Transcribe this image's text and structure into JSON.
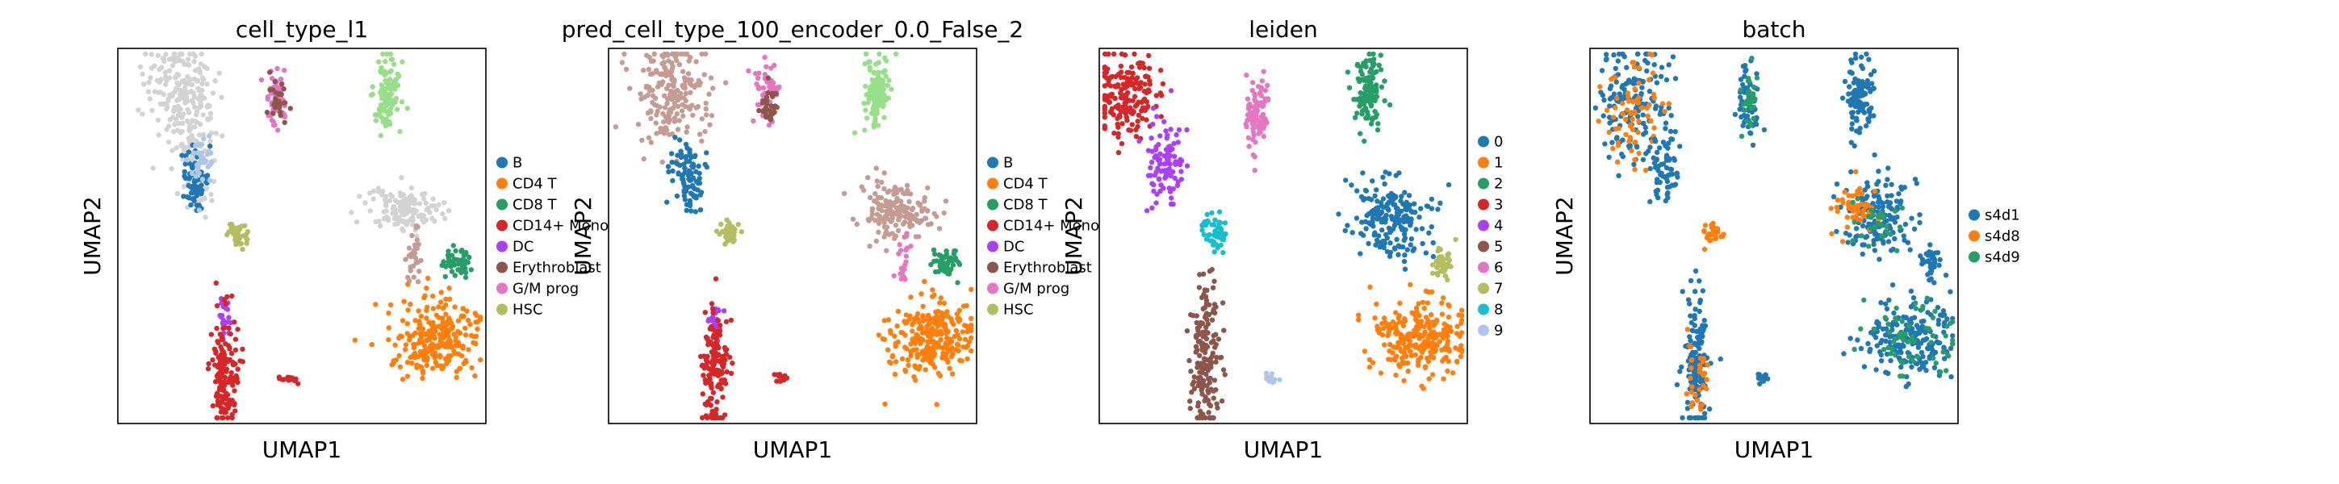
{
  "chart_data": [
    {
      "type": "scatter",
      "title": "cell_type_l1",
      "xlabel": "UMAP1",
      "ylabel": "UMAP2",
      "grid": false,
      "legend_position": "right",
      "legend": [
        {
          "label": "B",
          "color": "#1f77b4"
        },
        {
          "label": "CD4 T",
          "color": "#ff7f0e"
        },
        {
          "label": "CD8 T",
          "color": "#279e68"
        },
        {
          "label": "CD14+ Mono",
          "color": "#d62728"
        },
        {
          "label": "DC",
          "color": "#aa40fc"
        },
        {
          "label": "Erythroblast",
          "color": "#8c564b"
        },
        {
          "label": "G/M prog",
          "color": "#e377c2"
        },
        {
          "label": "HSC",
          "color": "#b5bd61"
        }
      ],
      "clusters": [
        {
          "category": "unlabeled",
          "color": "#d3d3d3",
          "cx": 0.17,
          "cy": 0.1,
          "sx": 0.05,
          "sy": 0.06,
          "n": 160
        },
        {
          "category": "unlabeled",
          "color": "#d3d3d3",
          "cx": 0.2,
          "cy": 0.25,
          "sx": 0.03,
          "sy": 0.06,
          "n": 80
        },
        {
          "category": "unlabeled",
          "color": "#d3d3d3",
          "cx": 0.22,
          "cy": 0.38,
          "sx": 0.02,
          "sy": 0.03,
          "n": 30
        },
        {
          "category": "B",
          "color": "#1f77b4",
          "cx": 0.21,
          "cy": 0.35,
          "sx": 0.018,
          "sy": 0.035,
          "n": 70
        },
        {
          "category": "B",
          "color": "#aec7e8",
          "cx": 0.23,
          "cy": 0.3,
          "sx": 0.02,
          "sy": 0.04,
          "n": 40
        },
        {
          "category": "G/M prog",
          "color": "#e377c2",
          "cx": 0.43,
          "cy": 0.12,
          "sx": 0.015,
          "sy": 0.04,
          "n": 60
        },
        {
          "category": "Erythroblast",
          "color": "#8c564b",
          "cx": 0.44,
          "cy": 0.14,
          "sx": 0.012,
          "sy": 0.03,
          "n": 30
        },
        {
          "category": "HSC",
          "color": "#b5bd61",
          "cx": 0.33,
          "cy": 0.5,
          "sx": 0.015,
          "sy": 0.015,
          "n": 40
        },
        {
          "category": "CD8 T",
          "color": "#98df8a",
          "cx": 0.73,
          "cy": 0.12,
          "sx": 0.018,
          "sy": 0.05,
          "n": 110
        },
        {
          "category": "unlabeled",
          "color": "#d3d3d3",
          "cx": 0.78,
          "cy": 0.43,
          "sx": 0.05,
          "sy": 0.03,
          "n": 140
        },
        {
          "category": "Erythroblast",
          "color": "#c49c94",
          "cx": 0.8,
          "cy": 0.55,
          "sx": 0.01,
          "sy": 0.04,
          "n": 30
        },
        {
          "category": "CD8 T",
          "color": "#279e68",
          "cx": 0.92,
          "cy": 0.57,
          "sx": 0.018,
          "sy": 0.02,
          "n": 50
        },
        {
          "category": "CD4 T",
          "color": "#ff7f0e",
          "cx": 0.87,
          "cy": 0.77,
          "sx": 0.06,
          "sy": 0.05,
          "n": 260
        },
        {
          "category": "DC",
          "color": "#aa40fc",
          "cx": 0.29,
          "cy": 0.72,
          "sx": 0.01,
          "sy": 0.025,
          "n": 25
        },
        {
          "category": "CD14+ Mono",
          "color": "#d62728",
          "cx": 0.29,
          "cy": 0.86,
          "sx": 0.018,
          "sy": 0.08,
          "n": 150
        },
        {
          "category": "CD14+ Mono",
          "color": "#d62728",
          "cx": 0.47,
          "cy": 0.88,
          "sx": 0.012,
          "sy": 0.006,
          "n": 15
        }
      ]
    },
    {
      "type": "scatter",
      "title": "pred_cell_type_100_encoder_0.0_False_2",
      "xlabel": "UMAP1",
      "ylabel": "UMAP2",
      "grid": false,
      "legend_position": "right",
      "legend": [
        {
          "label": "B",
          "color": "#1f77b4"
        },
        {
          "label": "CD4 T",
          "color": "#ff7f0e"
        },
        {
          "label": "CD8 T",
          "color": "#279e68"
        },
        {
          "label": "CD14+ Mono",
          "color": "#d62728"
        },
        {
          "label": "DC",
          "color": "#aa40fc"
        },
        {
          "label": "Erythroblast",
          "color": "#8c564b"
        },
        {
          "label": "G/M prog",
          "color": "#e377c2"
        },
        {
          "label": "HSC",
          "color": "#b5bd61"
        }
      ],
      "clusters": [
        {
          "category": "Erythroblast",
          "color": "#c49c94",
          "cx": 0.17,
          "cy": 0.12,
          "sx": 0.05,
          "sy": 0.07,
          "n": 200
        },
        {
          "category": "B",
          "color": "#1f77b4",
          "cx": 0.21,
          "cy": 0.33,
          "sx": 0.02,
          "sy": 0.05,
          "n": 90
        },
        {
          "category": "HSC",
          "color": "#b5bd61",
          "cx": 0.33,
          "cy": 0.49,
          "sx": 0.015,
          "sy": 0.015,
          "n": 40
        },
        {
          "category": "G/M prog",
          "color": "#e377c2",
          "cx": 0.43,
          "cy": 0.12,
          "sx": 0.015,
          "sy": 0.04,
          "n": 60
        },
        {
          "category": "Erythroblast",
          "color": "#8c564b",
          "cx": 0.44,
          "cy": 0.15,
          "sx": 0.012,
          "sy": 0.03,
          "n": 30
        },
        {
          "category": "CD8 T",
          "color": "#98df8a",
          "cx": 0.73,
          "cy": 0.12,
          "sx": 0.018,
          "sy": 0.05,
          "n": 110
        },
        {
          "category": "Erythroblast",
          "color": "#c49c94",
          "cx": 0.78,
          "cy": 0.44,
          "sx": 0.05,
          "sy": 0.04,
          "n": 160
        },
        {
          "category": "G/M prog",
          "color": "#e377c2",
          "cx": 0.8,
          "cy": 0.56,
          "sx": 0.01,
          "sy": 0.03,
          "n": 20
        },
        {
          "category": "CD8 T",
          "color": "#279e68",
          "cx": 0.92,
          "cy": 0.57,
          "sx": 0.018,
          "sy": 0.02,
          "n": 50
        },
        {
          "category": "CD4 T",
          "color": "#ff7f0e",
          "cx": 0.87,
          "cy": 0.77,
          "sx": 0.06,
          "sy": 0.05,
          "n": 260
        },
        {
          "category": "DC",
          "color": "#aa40fc",
          "cx": 0.29,
          "cy": 0.72,
          "sx": 0.01,
          "sy": 0.025,
          "n": 25
        },
        {
          "category": "CD14+ Mono",
          "color": "#d62728",
          "cx": 0.29,
          "cy": 0.86,
          "sx": 0.018,
          "sy": 0.08,
          "n": 150
        },
        {
          "category": "CD14+ Mono",
          "color": "#d62728",
          "cx": 0.47,
          "cy": 0.88,
          "sx": 0.012,
          "sy": 0.006,
          "n": 15
        }
      ]
    },
    {
      "type": "scatter",
      "title": "leiden",
      "xlabel": "UMAP1",
      "ylabel": "UMAP2",
      "grid": false,
      "legend_position": "right",
      "legend": [
        {
          "label": "0",
          "color": "#1f77b4"
        },
        {
          "label": "1",
          "color": "#ff7f0e"
        },
        {
          "label": "2",
          "color": "#279e68"
        },
        {
          "label": "3",
          "color": "#d62728"
        },
        {
          "label": "4",
          "color": "#aa40fc"
        },
        {
          "label": "5",
          "color": "#8c564b"
        },
        {
          "label": "6",
          "color": "#e377c2"
        },
        {
          "label": "7",
          "color": "#b5bd61"
        },
        {
          "label": "8",
          "color": "#17becf"
        },
        {
          "label": "9",
          "color": "#aec7e8"
        }
      ],
      "clusters": [
        {
          "category": "3",
          "color": "#d62728",
          "cx": 0.07,
          "cy": 0.13,
          "sx": 0.04,
          "sy": 0.06,
          "n": 180
        },
        {
          "category": "4",
          "color": "#aa40fc",
          "cx": 0.18,
          "cy": 0.3,
          "sx": 0.025,
          "sy": 0.06,
          "n": 100
        },
        {
          "category": "8",
          "color": "#17becf",
          "cx": 0.32,
          "cy": 0.49,
          "sx": 0.02,
          "sy": 0.02,
          "n": 50
        },
        {
          "category": "6",
          "color": "#e377c2",
          "cx": 0.43,
          "cy": 0.16,
          "sx": 0.018,
          "sy": 0.05,
          "n": 90
        },
        {
          "category": "2",
          "color": "#279e68",
          "cx": 0.73,
          "cy": 0.12,
          "sx": 0.02,
          "sy": 0.05,
          "n": 110
        },
        {
          "category": "0",
          "color": "#1f77b4",
          "cx": 0.79,
          "cy": 0.45,
          "sx": 0.05,
          "sy": 0.05,
          "n": 200
        },
        {
          "category": "7",
          "color": "#b5bd61",
          "cx": 0.93,
          "cy": 0.57,
          "sx": 0.015,
          "sy": 0.02,
          "n": 45
        },
        {
          "category": "1",
          "color": "#ff7f0e",
          "cx": 0.87,
          "cy": 0.77,
          "sx": 0.06,
          "sy": 0.05,
          "n": 260
        },
        {
          "category": "5",
          "color": "#8c564b",
          "cx": 0.29,
          "cy": 0.82,
          "sx": 0.02,
          "sy": 0.1,
          "n": 170
        },
        {
          "category": "9",
          "color": "#aec7e8",
          "cx": 0.47,
          "cy": 0.88,
          "sx": 0.012,
          "sy": 0.006,
          "n": 15
        }
      ]
    },
    {
      "type": "scatter",
      "title": "batch",
      "xlabel": "UMAP1",
      "ylabel": "UMAP2",
      "grid": false,
      "legend_position": "right",
      "legend": [
        {
          "label": "s4d1",
          "color": "#1f77b4"
        },
        {
          "label": "s4d8",
          "color": "#ff7f0e"
        },
        {
          "label": "s4d9",
          "color": "#279e68"
        }
      ],
      "clusters": [
        {
          "category": "s4d1",
          "color": "#1f77b4",
          "cx": 0.12,
          "cy": 0.15,
          "sx": 0.05,
          "sy": 0.08,
          "n": 160
        },
        {
          "category": "s4d8",
          "color": "#ff7f0e",
          "cx": 0.12,
          "cy": 0.17,
          "sx": 0.04,
          "sy": 0.08,
          "n": 70
        },
        {
          "category": "s4d1",
          "color": "#1f77b4",
          "cx": 0.2,
          "cy": 0.33,
          "sx": 0.02,
          "sy": 0.05,
          "n": 60
        },
        {
          "category": "s4d8",
          "color": "#ff7f0e",
          "cx": 0.33,
          "cy": 0.49,
          "sx": 0.015,
          "sy": 0.015,
          "n": 30
        },
        {
          "category": "s4d1",
          "color": "#1f77b4",
          "cx": 0.43,
          "cy": 0.15,
          "sx": 0.018,
          "sy": 0.05,
          "n": 60
        },
        {
          "category": "s4d9",
          "color": "#279e68",
          "cx": 0.43,
          "cy": 0.12,
          "sx": 0.012,
          "sy": 0.04,
          "n": 30
        },
        {
          "category": "s4d1",
          "color": "#1f77b4",
          "cx": 0.73,
          "cy": 0.12,
          "sx": 0.02,
          "sy": 0.05,
          "n": 100
        },
        {
          "category": "s4d1",
          "color": "#1f77b4",
          "cx": 0.79,
          "cy": 0.45,
          "sx": 0.05,
          "sy": 0.05,
          "n": 150
        },
        {
          "category": "s4d8",
          "color": "#ff7f0e",
          "cx": 0.72,
          "cy": 0.43,
          "sx": 0.03,
          "sy": 0.03,
          "n": 50
        },
        {
          "category": "s4d9",
          "color": "#279e68",
          "cx": 0.78,
          "cy": 0.47,
          "sx": 0.04,
          "sy": 0.04,
          "n": 30
        },
        {
          "category": "s4d1",
          "color": "#1f77b4",
          "cx": 0.93,
          "cy": 0.57,
          "sx": 0.015,
          "sy": 0.02,
          "n": 40
        },
        {
          "category": "s4d1",
          "color": "#1f77b4",
          "cx": 0.87,
          "cy": 0.77,
          "sx": 0.06,
          "sy": 0.05,
          "n": 200
        },
        {
          "category": "s4d9",
          "color": "#279e68",
          "cx": 0.87,
          "cy": 0.77,
          "sx": 0.06,
          "sy": 0.05,
          "n": 60
        },
        {
          "category": "s4d1",
          "color": "#1f77b4",
          "cx": 0.29,
          "cy": 0.82,
          "sx": 0.018,
          "sy": 0.1,
          "n": 140
        },
        {
          "category": "s4d8",
          "color": "#ff7f0e",
          "cx": 0.29,
          "cy": 0.86,
          "sx": 0.015,
          "sy": 0.06,
          "n": 30
        },
        {
          "category": "s4d1",
          "color": "#1f77b4",
          "cx": 0.47,
          "cy": 0.88,
          "sx": 0.012,
          "sy": 0.006,
          "n": 15
        }
      ]
    }
  ]
}
